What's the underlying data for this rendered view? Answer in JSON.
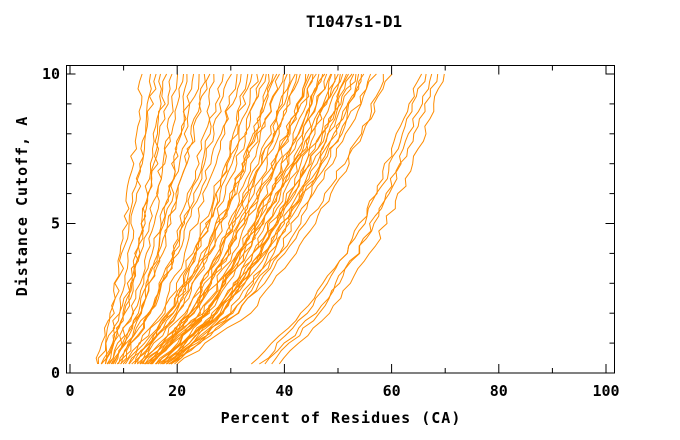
{
  "title": "T1047s1-D1",
  "style": {
    "curve_color": "#ff8c00",
    "frame_color": "#000000",
    "background": "#ffffff",
    "wobble": 0.55
  },
  "chart_data": {
    "type": "line",
    "title": "T1047s1-D1",
    "xlabel": "Percent of Residues (CA)",
    "ylabel": "Distance Cutoff, A",
    "xlim": [
      0,
      101.5
    ],
    "ylim": [
      0,
      10.3
    ],
    "grid": false,
    "legend": "none",
    "x_major_ticks": [
      0,
      20,
      40,
      60,
      80,
      100
    ],
    "x_minor_ticks": [
      10,
      30,
      50,
      70,
      90
    ],
    "y_major_ticks": [
      0,
      5,
      10
    ],
    "y_minor_ticks": [
      1,
      2,
      3,
      4,
      6,
      7,
      8,
      9
    ],
    "x_tick_labels": [
      "0",
      "20",
      "40",
      "60",
      "80",
      "100"
    ],
    "y_tick_labels": [
      "0",
      "5",
      "10"
    ],
    "cutoffs": [
      0.3,
      2,
      4,
      6,
      8,
      10
    ],
    "shapes": {
      "a": [
        0,
        0.28,
        0.5,
        0.68,
        0.85,
        1
      ],
      "b": [
        0,
        0.32,
        0.55,
        0.72,
        0.88,
        1
      ],
      "c": [
        0,
        0.25,
        0.46,
        0.65,
        0.83,
        1
      ],
      "d": [
        0,
        0.35,
        0.58,
        0.75,
        0.9,
        1
      ],
      "e": [
        0,
        0.3,
        0.52,
        0.7,
        0.86,
        1
      ],
      "o": [
        0,
        0.3,
        0.55,
        0.73,
        0.87,
        1
      ],
      "p": [
        0,
        0.28,
        0.52,
        0.71,
        0.86,
        1
      ]
    },
    "series": [
      {
        "start": 5.5,
        "end": 13.5,
        "shape": "a"
      },
      {
        "start": 6,
        "end": 15,
        "shape": "b"
      },
      {
        "start": 5,
        "end": 16,
        "shape": "c"
      },
      {
        "start": 6.5,
        "end": 17,
        "shape": "d"
      },
      {
        "start": 7,
        "end": 18,
        "shape": "e"
      },
      {
        "start": 6,
        "end": 19,
        "shape": "a"
      },
      {
        "start": 7.5,
        "end": 20,
        "shape": "b"
      },
      {
        "start": 6.5,
        "end": 21,
        "shape": "c"
      },
      {
        "start": 8,
        "end": 22,
        "shape": "d"
      },
      {
        "start": 7,
        "end": 23,
        "shape": "e"
      },
      {
        "start": 8.5,
        "end": 24,
        "shape": "a"
      },
      {
        "start": 7.5,
        "end": 25,
        "shape": "b"
      },
      {
        "start": 9,
        "end": 26,
        "shape": "c"
      },
      {
        "start": 8,
        "end": 27,
        "shape": "d"
      },
      {
        "start": 9.5,
        "end": 28.5,
        "shape": "e"
      },
      {
        "start": 9,
        "end": 30,
        "shape": "a"
      },
      {
        "start": 10,
        "end": 31,
        "shape": "b"
      },
      {
        "start": 9.5,
        "end": 32,
        "shape": "c"
      },
      {
        "start": 11,
        "end": 33,
        "shape": "d"
      },
      {
        "start": 10.5,
        "end": 34,
        "shape": "e"
      },
      {
        "start": 12,
        "end": 35,
        "shape": "a"
      },
      {
        "start": 11,
        "end": 36,
        "shape": "b"
      },
      {
        "start": 12.5,
        "end": 36.5,
        "shape": "c"
      },
      {
        "start": 11.5,
        "end": 37,
        "shape": "d"
      },
      {
        "start": 13,
        "end": 38,
        "shape": "e"
      },
      {
        "start": 12,
        "end": 38.5,
        "shape": "a"
      },
      {
        "start": 13.5,
        "end": 39,
        "shape": "b"
      },
      {
        "start": 12.5,
        "end": 40,
        "shape": "c"
      },
      {
        "start": 14,
        "end": 40.5,
        "shape": "d"
      },
      {
        "start": 13,
        "end": 41,
        "shape": "e"
      },
      {
        "start": 14.5,
        "end": 42,
        "shape": "a"
      },
      {
        "start": 13.5,
        "end": 42.5,
        "shape": "b"
      },
      {
        "start": 15,
        "end": 43,
        "shape": "c"
      },
      {
        "start": 14,
        "end": 44,
        "shape": "d"
      },
      {
        "start": 15,
        "end": 44.5,
        "shape": "e"
      },
      {
        "start": 14,
        "end": 45,
        "shape": "a"
      },
      {
        "start": 16,
        "end": 45.5,
        "shape": "b"
      },
      {
        "start": 15.5,
        "end": 46,
        "shape": "c"
      },
      {
        "start": 17,
        "end": 46.5,
        "shape": "d"
      },
      {
        "start": 14.5,
        "end": 47,
        "shape": "e"
      },
      {
        "start": 16.5,
        "end": 47.5,
        "shape": "a"
      },
      {
        "start": 15,
        "end": 48,
        "shape": "b"
      },
      {
        "start": 17.5,
        "end": 48.5,
        "shape": "c"
      },
      {
        "start": 16,
        "end": 49,
        "shape": "d"
      },
      {
        "start": 18,
        "end": 49.5,
        "shape": "e"
      },
      {
        "start": 15.5,
        "end": 50,
        "shape": "a"
      },
      {
        "start": 17,
        "end": 50.5,
        "shape": "b"
      },
      {
        "start": 16.5,
        "end": 51,
        "shape": "c"
      },
      {
        "start": 18.5,
        "end": 51.5,
        "shape": "d"
      },
      {
        "start": 17,
        "end": 52,
        "shape": "e"
      },
      {
        "start": 19,
        "end": 52.5,
        "shape": "a"
      },
      {
        "start": 16,
        "end": 53,
        "shape": "b"
      },
      {
        "start": 18,
        "end": 53.5,
        "shape": "c"
      },
      {
        "start": 17.5,
        "end": 54,
        "shape": "d"
      },
      {
        "start": 19,
        "end": 54.5,
        "shape": "e"
      },
      {
        "start": 18,
        "end": 55,
        "shape": "a"
      },
      {
        "start": 19.5,
        "end": 56,
        "shape": "b"
      },
      {
        "start": 18.5,
        "end": 57,
        "shape": "c"
      },
      {
        "start": 20,
        "end": 58.5,
        "shape": "d"
      },
      {
        "start": 19,
        "end": 60,
        "shape": "e"
      },
      {
        "start": 34,
        "end": 65.5,
        "shape": "o"
      },
      {
        "start": 35.5,
        "end": 66.5,
        "shape": "p"
      },
      {
        "start": 36.5,
        "end": 67.5,
        "shape": "o"
      },
      {
        "start": 37.5,
        "end": 68.5,
        "shape": "p"
      },
      {
        "start": 39,
        "end": 70,
        "shape": "o"
      }
    ]
  }
}
